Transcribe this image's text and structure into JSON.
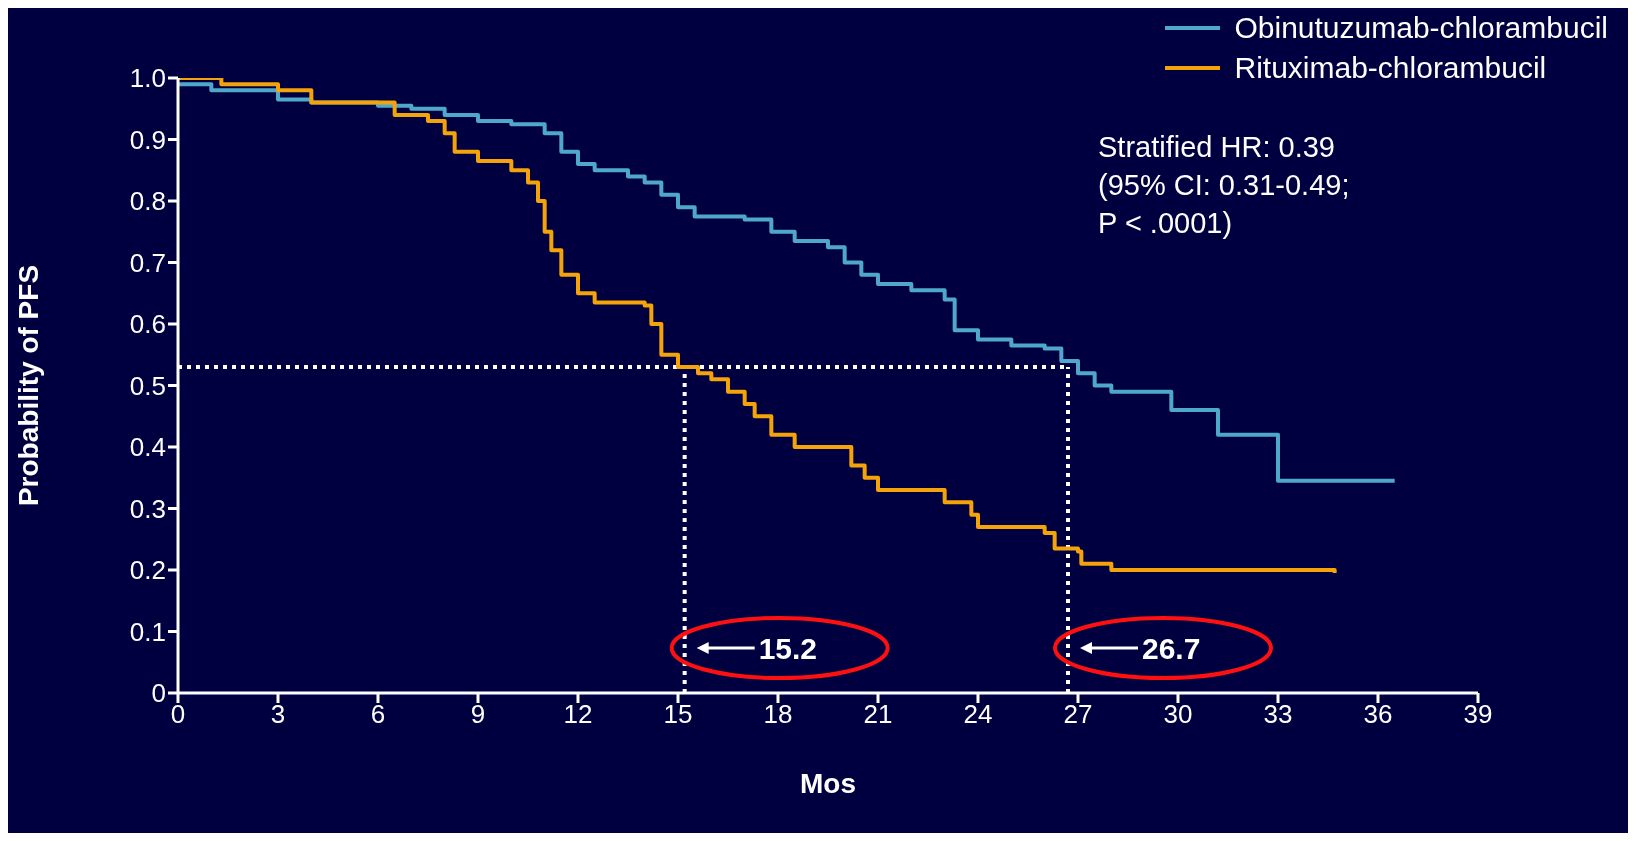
{
  "chart_data": {
    "type": "step",
    "xlabel": "Mos",
    "ylabel": "Probability of PFS",
    "xlim": [
      0,
      39
    ],
    "xticks": [
      0,
      3,
      6,
      9,
      12,
      15,
      18,
      21,
      24,
      27,
      30,
      33,
      36,
      39
    ],
    "ylim": [
      0,
      1
    ],
    "yticks": [
      {
        "value": 0,
        "label": "0"
      },
      {
        "value": 0.1,
        "label": "0.1"
      },
      {
        "value": 0.2,
        "label": "0.2"
      },
      {
        "value": 0.3,
        "label": "0.3"
      },
      {
        "value": 0.4,
        "label": "0.4"
      },
      {
        "value": 0.5,
        "label": "0.5"
      },
      {
        "value": 0.6,
        "label": "0.6"
      },
      {
        "value": 0.7,
        "label": "0.7"
      },
      {
        "value": 0.8,
        "label": "0.8"
      },
      {
        "value": 0.9,
        "label": "0.9"
      },
      {
        "value": 1,
        "label": "1.0"
      }
    ],
    "grid": false,
    "legend": "top right",
    "marker": "none",
    "line_style": "solid",
    "series": [
      {
        "name": "Obinutuzumab-chlorambucil",
        "color": "#4fa8cc",
        "x": [
          0,
          1,
          3,
          4,
          6,
          7,
          8,
          9,
          10,
          11,
          11.5,
          12,
          12.5,
          13.5,
          14,
          14.5,
          15,
          15.5,
          17,
          17.8,
          18.5,
          19.5,
          20,
          20.5,
          21,
          22,
          23,
          23.3,
          24,
          25,
          26,
          26.5,
          27,
          27.5,
          28,
          29.5,
          29.8,
          31.2,
          33,
          36.5
        ],
        "values": [
          0.99,
          0.98,
          0.965,
          0.96,
          0.955,
          0.95,
          0.94,
          0.93,
          0.925,
          0.91,
          0.88,
          0.86,
          0.85,
          0.84,
          0.83,
          0.81,
          0.79,
          0.775,
          0.77,
          0.75,
          0.735,
          0.725,
          0.7,
          0.68,
          0.665,
          0.655,
          0.64,
          0.59,
          0.575,
          0.565,
          0.56,
          0.54,
          0.52,
          0.5,
          0.49,
          0.49,
          0.46,
          0.42,
          0.345,
          0.345
        ]
      },
      {
        "name": "Rituximab-chlorambucil",
        "color": "#f5a30a",
        "x": [
          0,
          1.3,
          3,
          4,
          6,
          6.5,
          7.5,
          8,
          8.3,
          9,
          10,
          10.5,
          10.8,
          11,
          11.2,
          11.5,
          12,
          12.5,
          14,
          14.2,
          14.5,
          15,
          15.6,
          16,
          16.5,
          17,
          17.3,
          17.8,
          18.5,
          19.8,
          20.2,
          20.6,
          21,
          22.5,
          23,
          23.8,
          24,
          26,
          26.3,
          27,
          27.1,
          28,
          34.7
        ],
        "values": [
          1,
          0.99,
          0.98,
          0.96,
          0.96,
          0.94,
          0.93,
          0.91,
          0.88,
          0.865,
          0.85,
          0.83,
          0.8,
          0.75,
          0.72,
          0.68,
          0.65,
          0.635,
          0.63,
          0.6,
          0.55,
          0.53,
          0.52,
          0.51,
          0.49,
          0.47,
          0.45,
          0.42,
          0.4,
          0.4,
          0.37,
          0.35,
          0.33,
          0.33,
          0.31,
          0.29,
          0.27,
          0.26,
          0.235,
          0.23,
          0.21,
          0.2,
          0.195
        ]
      }
    ],
    "ref_lines": [
      {
        "axis": "y",
        "value": 0.53,
        "color": "#ffffff",
        "line_style": "dotted"
      },
      {
        "axis": "x",
        "value": 15.2,
        "label": "15.2",
        "color": "#ffffff",
        "line_style": "dotted"
      },
      {
        "axis": "x",
        "value": 26.7,
        "label": "26.7",
        "color": "#ffffff",
        "line_style": "dotted"
      }
    ],
    "annotations": [
      "Stratified HR: 0.39",
      "(95% CI: 0.31-0.49;",
      "P < .0001)"
    ]
  }
}
